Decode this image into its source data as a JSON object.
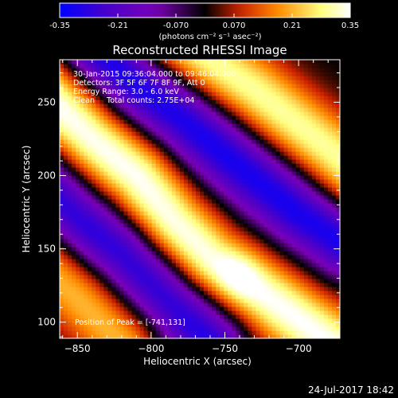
{
  "chart_data": {
    "type": "heatmap",
    "title": "Reconstructed RHESSI Image",
    "xlabel": "Heliocentric X (arcsec)",
    "ylabel": "Heliocentric Y (arcsec)",
    "xlim": [
      -862,
      -672
    ],
    "ylim": [
      89,
      279
    ],
    "x_ticks": [
      -850,
      -800,
      -750,
      -700
    ],
    "y_ticks": [
      100,
      150,
      200,
      250
    ],
    "colorbar": {
      "range": [
        -0.35,
        0.35
      ],
      "ticks": [
        "-0.35",
        "-0.21",
        "-0.070",
        "0.070",
        "0.21",
        "0.35"
      ],
      "unit_label": "(photons cm⁻² s⁻¹ asec⁻²)",
      "colors": [
        "#0000ff",
        "#4b00c8",
        "#7a00b8",
        "#000000",
        "#cc2200",
        "#ff8a00",
        "#ffff80",
        "#ffffff"
      ]
    },
    "annotations": [
      "30-Jan-2015 09:36:04.000 to 09:46:04.000",
      "Detectors: 3F 5F 6F 7F 8F 9F, Att 0",
      "Energy Range: 3.0 - 6.0 keV",
      "Clean     Total counts: 2.75E+04"
    ],
    "peak_label": "Position of Peak = [-741,131]",
    "peak": [
      -741,
      131
    ],
    "ridges": [
      {
        "role": "bright",
        "points": [
          [
            -875,
            260
          ],
          [
            -840,
            225
          ],
          [
            -810,
            200
          ],
          [
            -785,
            168
          ],
          [
            -760,
            143
          ],
          [
            -741,
            131
          ],
          [
            -715,
            113
          ],
          [
            -690,
            95
          ],
          [
            -670,
            80
          ]
        ],
        "peak_value": 0.35
      },
      {
        "role": "bright",
        "points": [
          [
            -790,
            300
          ],
          [
            -760,
            278
          ],
          [
            -730,
            258
          ],
          [
            -705,
            238
          ],
          [
            -680,
            218
          ],
          [
            -660,
            200
          ]
        ],
        "peak_value": 0.3
      },
      {
        "role": "bright",
        "points": [
          [
            -880,
            150
          ],
          [
            -860,
            128
          ],
          [
            -840,
            108
          ],
          [
            -820,
            88
          ]
        ],
        "peak_value": 0.22
      },
      {
        "role": "dark",
        "points": [
          [
            -875,
            195
          ],
          [
            -850,
            170
          ],
          [
            -820,
            148
          ],
          [
            -800,
            128
          ],
          [
            -780,
            108
          ],
          [
            -760,
            88
          ]
        ],
        "peak_value": -0.3
      },
      {
        "role": "dark",
        "points": [
          [
            -840,
            290
          ],
          [
            -810,
            262
          ],
          [
            -780,
            240
          ],
          [
            -750,
            215
          ],
          [
            -725,
            195
          ],
          [
            -700,
            175
          ],
          [
            -670,
            155
          ]
        ],
        "peak_value": -0.32
      }
    ],
    "grid": false
  },
  "timestamp": "24-Jul-2017 18:42"
}
